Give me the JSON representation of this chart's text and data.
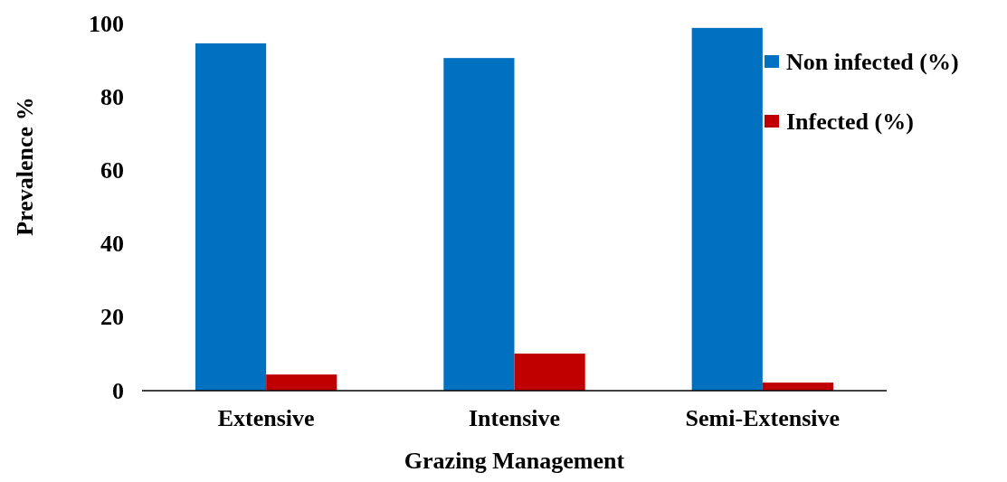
{
  "chart_data": {
    "type": "bar",
    "xlabel": "Grazing Management",
    "ylabel": "Prevalence %",
    "categories": [
      "Extensive",
      "Intensive",
      "Semi-Extensive"
    ],
    "series": [
      {
        "name": "Non infected (%)",
        "color": "#0070c0",
        "values": [
          94.6,
          90.6,
          98.8
        ]
      },
      {
        "name": "Infected (%)",
        "color": "#c00000",
        "values": [
          4.4,
          10.1,
          2.2
        ]
      }
    ],
    "ylim": [
      0,
      100
    ],
    "yticks": [
      0,
      20,
      40,
      60,
      80,
      100
    ],
    "grid": false,
    "legend": "top right"
  }
}
